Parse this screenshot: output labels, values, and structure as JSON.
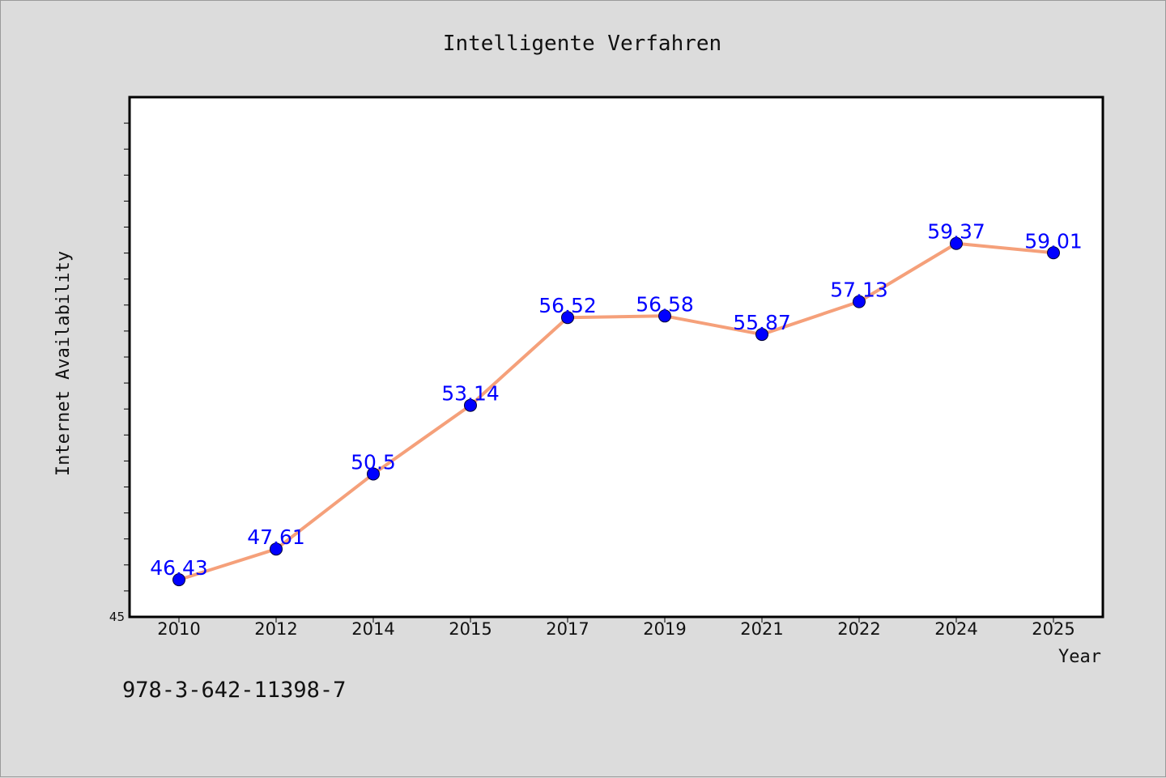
{
  "chart_data": {
    "type": "line",
    "title": "Intelligente Verfahren",
    "xlabel": "Year",
    "ylabel": "Internet Availability",
    "categories": [
      "2010",
      "2012",
      "2014",
      "2015",
      "2017",
      "2019",
      "2021",
      "2022",
      "2024",
      "2025"
    ],
    "series": [
      {
        "values": [
          46.43,
          47.61,
          50.5,
          53.14,
          56.52,
          56.58,
          55.87,
          57.13,
          59.37,
          59.01
        ],
        "line_color": "#f5a07a",
        "marker_color": "#0000ff"
      }
    ],
    "data_labels": [
      "46.43",
      "47.61",
      "50.5",
      "53.14",
      "56.52",
      "56.58",
      "55.87",
      "57.13",
      "59.37",
      "59.01"
    ],
    "ylim": [
      45,
      65
    ],
    "y_tick_labels": [
      "45"
    ],
    "grid": false,
    "legend": "none"
  },
  "footer": {
    "text": "978-3-642-11398-7"
  }
}
